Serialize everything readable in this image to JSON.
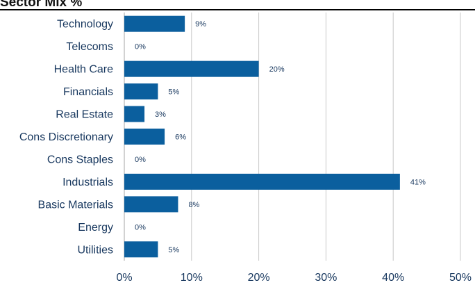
{
  "header": {
    "title": "Sector Mix %"
  },
  "chart_data": {
    "type": "bar",
    "orientation": "horizontal",
    "categories": [
      "Technology",
      "Telecoms",
      "Health Care",
      "Financials",
      "Real Estate",
      "Cons Discretionary",
      "Cons Staples",
      "Industrials",
      "Basic Materials",
      "Energy",
      "Utilities"
    ],
    "values": [
      9,
      0,
      20,
      5,
      3,
      6,
      0,
      41,
      8,
      0,
      5
    ],
    "value_labels": [
      "9%",
      "0%",
      "20%",
      "5%",
      "3%",
      "6%",
      "0%",
      "41%",
      "8%",
      "0%",
      "5%"
    ],
    "xlim": [
      0,
      50
    ],
    "xticks": [
      0,
      10,
      20,
      30,
      40,
      50
    ],
    "xtick_labels": [
      "0%",
      "10%",
      "20%",
      "30%",
      "40%",
      "50%"
    ],
    "grid": "vertical",
    "bar_color": "#0b5f9e",
    "grid_color": "#c8c8c8",
    "label_color": "#17375e"
  }
}
